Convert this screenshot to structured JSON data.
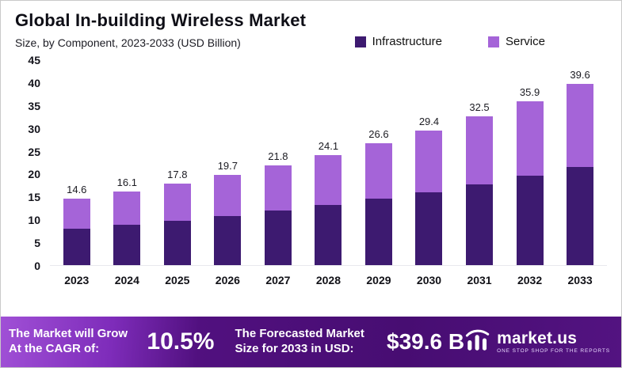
{
  "chart": {
    "title": "Global In-building Wireless Market",
    "subtitle": "Size, by Component, 2023-2033 (USD Billion)"
  },
  "chart_data": {
    "type": "bar",
    "stacked": true,
    "title": "Global In-building Wireless Market",
    "subtitle": "Size, by Component, 2023-2033 (USD Billion)",
    "unit": "USD Billion",
    "categories": [
      "2023",
      "2024",
      "2025",
      "2026",
      "2027",
      "2028",
      "2029",
      "2030",
      "2031",
      "2032",
      "2033"
    ],
    "series": [
      {
        "name": "Infrastructure",
        "color": "#3d1a70",
        "values": [
          8.0,
          8.8,
          9.7,
          10.7,
          11.9,
          13.1,
          14.5,
          16.0,
          17.7,
          19.5,
          21.5
        ]
      },
      {
        "name": "Service",
        "color": "#a564d8",
        "values": [
          6.6,
          7.3,
          8.1,
          9.0,
          9.9,
          11.0,
          12.1,
          13.4,
          14.8,
          16.4,
          18.1
        ]
      }
    ],
    "totals": [
      "14.6",
      "16.1",
      "17.8",
      "19.7",
      "21.8",
      "24.1",
      "26.6",
      "29.4",
      "32.5",
      "35.9",
      "39.6"
    ],
    "ylim": [
      0,
      45
    ],
    "yticks": [
      0,
      5,
      10,
      15,
      20,
      25,
      30,
      35,
      40,
      45
    ],
    "grid": false,
    "legend_position": "top-right"
  },
  "colors": {
    "infrastructure": "#3d1a70",
    "service": "#a564d8",
    "banner_light": "#a050d6",
    "banner_dark": "#51107f",
    "banner_deep": "#470d72",
    "text_dark": "#121218"
  },
  "banner": {
    "cagr_label": "The Market will Grow At the CAGR of:",
    "cagr_value": "10.5%",
    "forecast_label": "The Forecasted Market Size for 2033 in USD:",
    "forecast_value": "$39.6 B",
    "logo_text": "market.us",
    "logo_tagline": "ONE STOP SHOP FOR THE REPORTS"
  }
}
